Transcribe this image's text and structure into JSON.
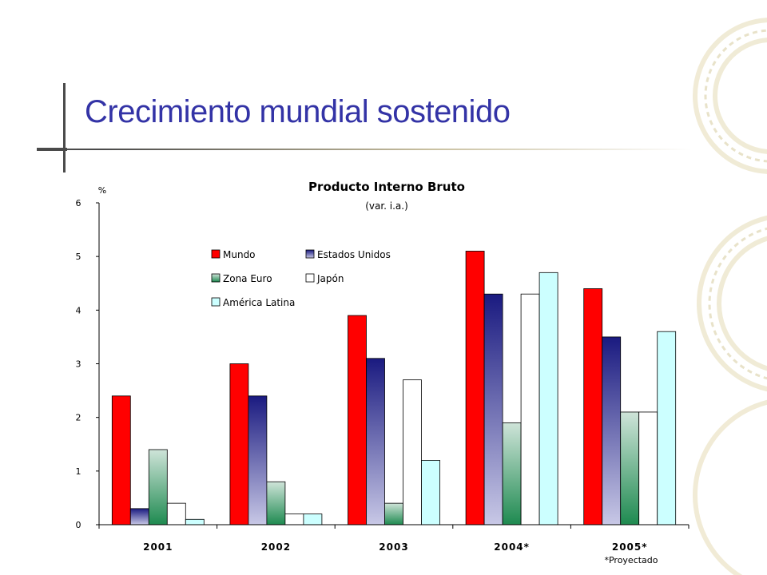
{
  "slide": {
    "title": "Crecimiento mundial sostenido"
  },
  "colors": {
    "title": "#3333a6",
    "mundo": "#ff0000",
    "estados_unidos_top": "#1a1a80",
    "estados_unidos_bottom": "#c8c8e6",
    "zona_euro_top": "#cfe4d9",
    "zona_euro_bottom": "#1e8a50",
    "japon": "#ffffff",
    "america_latina": "#ccffff"
  },
  "chart_data": {
    "type": "bar",
    "title": "Producto Interno Bruto",
    "subtitle": "(var. i.a.)",
    "ylabel": "%",
    "xlabel": "",
    "ylim": [
      0,
      6
    ],
    "yticks": [
      "0",
      "1",
      "2",
      "3",
      "4",
      "5",
      "6"
    ],
    "categories": [
      "2001",
      "2002",
      "2003",
      "2004*",
      "2005*"
    ],
    "series": [
      {
        "name": "Mundo",
        "values": [
          2.4,
          3.0,
          3.9,
          5.1,
          4.4
        ]
      },
      {
        "name": "Estados Unidos",
        "values": [
          0.3,
          2.4,
          3.1,
          4.3,
          3.5
        ]
      },
      {
        "name": "Zona Euro",
        "values": [
          1.4,
          0.8,
          0.4,
          1.9,
          2.1
        ]
      },
      {
        "name": "Japón",
        "values": [
          0.4,
          0.2,
          2.7,
          4.3,
          2.1
        ]
      },
      {
        "name": "América Latina",
        "values": [
          0.1,
          0.2,
          1.2,
          4.7,
          3.6
        ]
      }
    ],
    "legend_position": "top-center",
    "grid": false,
    "note": "*Proyectado"
  }
}
